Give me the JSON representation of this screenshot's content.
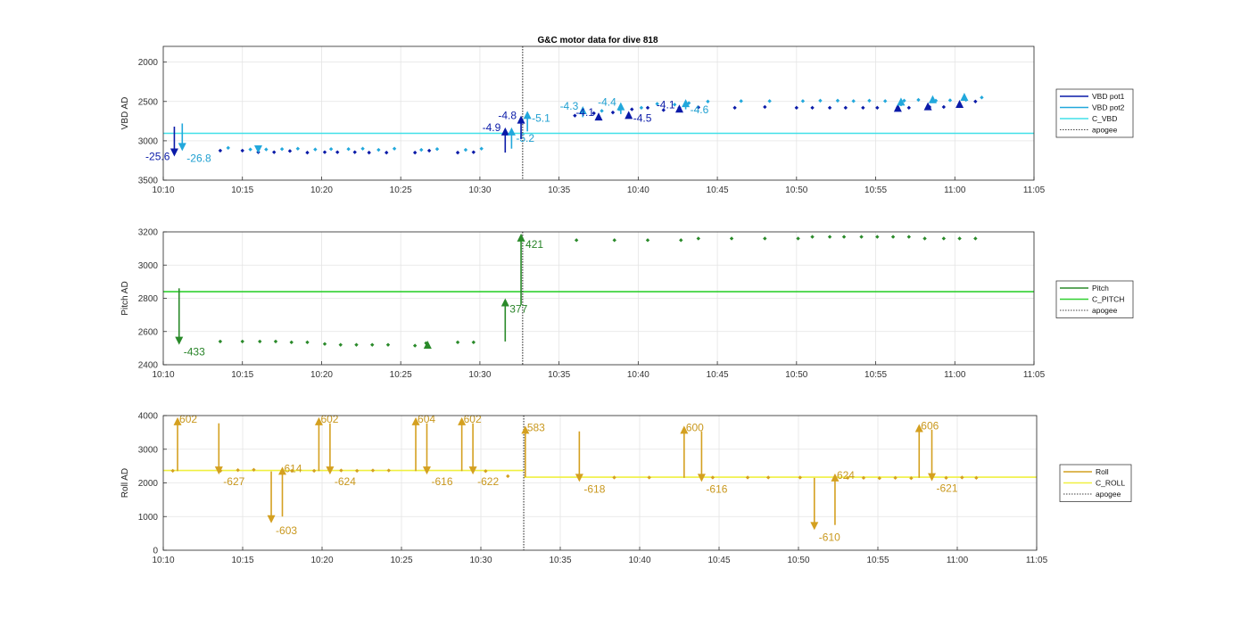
{
  "figure": {
    "title": "G&C motor data for dive 818"
  },
  "chart_data": [
    {
      "type": "scatter",
      "title": "G&C motor data for dive 818",
      "xlabel": "",
      "ylabel": "VBD AD",
      "x_ticks": [
        "10:10",
        "10:15",
        "10:20",
        "10:25",
        "10:30",
        "10:35",
        "10:40",
        "10:45",
        "10:50",
        "10:55",
        "11:00",
        "11:05"
      ],
      "y_ticks": [
        "2000",
        "2500",
        "3000",
        "3500"
      ],
      "xlim_min": [
        10,
        65
      ],
      "ylim": [
        1800,
        3500
      ],
      "y_reversed": true,
      "grid": true,
      "legend_position": "right",
      "legend": [
        {
          "label": "VBD pot1",
          "color": "#0a1aa8",
          "style": "solid"
        },
        {
          "label": "VBD pot2",
          "color": "#22a8dc",
          "style": "solid"
        },
        {
          "label": "C_VBD",
          "color": "#40e0e8",
          "style": "solid"
        },
        {
          "label": "apogee",
          "color": "#404040",
          "style": "dotted"
        }
      ],
      "hlines": [
        {
          "y": 2905,
          "color": "#40e0e8"
        }
      ],
      "apogee_min": 32.7,
      "series": [
        {
          "name": "VBD pot1",
          "color": "#0a1aa8",
          "x": [
            13.6,
            15,
            16,
            17,
            18,
            19.1,
            20.2,
            21,
            22.1,
            23,
            24.1,
            25.9,
            26.8,
            28.6,
            29.6,
            36,
            37.2,
            38.4,
            39.6,
            40.6,
            41.6,
            42.6,
            43.8,
            46.1,
            48,
            50,
            51,
            52.1,
            53.1,
            54.2,
            55.1,
            56.4,
            57.1,
            58.4,
            59.3,
            60.3,
            61.3
          ],
          "y": [
            3125,
            3125,
            3145,
            3145,
            3130,
            3150,
            3145,
            3145,
            3145,
            3150,
            3150,
            3150,
            3125,
            3150,
            3145,
            2680,
            2650,
            2640,
            2600,
            2580,
            2610,
            2580,
            2575,
            2580,
            2570,
            2580,
            2580,
            2580,
            2580,
            2580,
            2580,
            2575,
            2580,
            2570,
            2570,
            2560,
            2500
          ]
        },
        {
          "name": "VBD pot2",
          "color": "#22a8dc",
          "x": [
            14.1,
            15.5,
            16.5,
            17.5,
            18.5,
            19.6,
            20.6,
            21.7,
            22.6,
            23.6,
            24.6,
            26.3,
            27.3,
            29.1,
            30.1,
            36.5,
            37.7,
            38.8,
            40.2,
            41.2,
            42.3,
            43.2,
            44.4,
            46.5,
            48.3,
            50.4,
            51.5,
            52.6,
            53.6,
            54.6,
            55.6,
            56.8,
            57.7,
            58.8,
            59.7,
            60.7,
            61.7
          ],
          "y": [
            3090,
            3110,
            3110,
            3105,
            3100,
            3110,
            3105,
            3105,
            3100,
            3115,
            3100,
            3115,
            3105,
            3115,
            3100,
            2630,
            2620,
            2600,
            2580,
            2530,
            2540,
            2520,
            2500,
            2495,
            2495,
            2495,
            2490,
            2490,
            2495,
            2490,
            2495,
            2490,
            2480,
            2490,
            2485,
            2480,
            2450
          ]
        }
      ],
      "arrows": [
        {
          "x": 10.7,
          "y0": 2820,
          "y1": 3200,
          "color": "#0a1aa8",
          "label": "-25.6",
          "label_pos": "left"
        },
        {
          "x": 11.2,
          "y0": 2780,
          "y1": 3130,
          "color": "#22a8dc",
          "label": "-26.8",
          "label_pos": "right"
        },
        {
          "x": 16,
          "y0": 3120,
          "y1": 3160,
          "color": "#22a8dc",
          "label": "",
          "label_pos": "right"
        },
        {
          "x": 31.6,
          "y0": 3150,
          "y1": 2830,
          "color": "#0a1aa8",
          "label": "-4.9",
          "label_pos": "left"
        },
        {
          "x": 32.0,
          "y0": 3100,
          "y1": 2830,
          "color": "#22a8dc",
          "label": "-5.2",
          "label_pos": "belowright"
        },
        {
          "x": 32.6,
          "y0": 2980,
          "y1": 2680,
          "color": "#0a1aa8",
          "label": "-4.8",
          "label_pos": "left"
        },
        {
          "x": 33.0,
          "y0": 2880,
          "y1": 2620,
          "color": "#22a8dc",
          "label": "-5.1",
          "label_pos": "right"
        },
        {
          "x": 36.5,
          "y0": 2700,
          "y1": 2560,
          "color": "#22a8dc",
          "label": "-4.3",
          "label_pos": "left"
        },
        {
          "x": 37.5,
          "y0": 2690,
          "y1": 2640,
          "color": "#0a1aa8",
          "label": "-4.1",
          "label_pos": "left"
        },
        {
          "x": 38.9,
          "y0": 2660,
          "y1": 2510,
          "color": "#22a8dc",
          "label": "-4.4",
          "label_pos": "left"
        },
        {
          "x": 39.4,
          "y0": 2660,
          "y1": 2620,
          "color": "#0a1aa8",
          "label": "-4.5",
          "label_pos": "right"
        },
        {
          "x": 42.6,
          "y0": 2620,
          "y1": 2540,
          "color": "#0a1aa8",
          "label": "-4.1",
          "label_pos": "left"
        },
        {
          "x": 43.0,
          "y0": 2600,
          "y1": 2470,
          "color": "#22a8dc",
          "label": "-4.6",
          "label_pos": "belowright"
        },
        {
          "x": 56.4,
          "y0": 2600,
          "y1": 2530,
          "color": "#0a1aa8",
          "label": "",
          "label_pos": "right"
        },
        {
          "x": 56.6,
          "y0": 2560,
          "y1": 2450,
          "color": "#22a8dc",
          "label": "",
          "label_pos": "right"
        },
        {
          "x": 58.3,
          "y0": 2580,
          "y1": 2510,
          "color": "#0a1aa8",
          "label": "",
          "label_pos": "right"
        },
        {
          "x": 58.6,
          "y0": 2520,
          "y1": 2420,
          "color": "#22a8dc",
          "label": "",
          "label_pos": "right"
        },
        {
          "x": 60.3,
          "y0": 2560,
          "y1": 2480,
          "color": "#0a1aa8",
          "label": "",
          "label_pos": "right"
        },
        {
          "x": 60.6,
          "y0": 2480,
          "y1": 2390,
          "color": "#22a8dc",
          "label": "",
          "label_pos": "right"
        }
      ]
    },
    {
      "type": "scatter",
      "title": "",
      "xlabel": "",
      "ylabel": "Pitch AD",
      "x_ticks": [
        "10:10",
        "10:15",
        "10:20",
        "10:25",
        "10:30",
        "10:35",
        "10:40",
        "10:45",
        "10:50",
        "10:55",
        "11:00",
        "11:05"
      ],
      "y_ticks": [
        "2400",
        "2600",
        "2800",
        "3000",
        "3200"
      ],
      "xlim_min": [
        10,
        65
      ],
      "ylim": [
        2400,
        3200
      ],
      "y_reversed": false,
      "grid": true,
      "legend_position": "right",
      "legend": [
        {
          "label": "Pitch",
          "color": "#2a8a2a",
          "style": "solid"
        },
        {
          "label": "C_PITCH",
          "color": "#30d030",
          "style": "solid"
        },
        {
          "label": "apogee",
          "color": "#404040",
          "style": "dotted"
        }
      ],
      "hlines": [
        {
          "y": 2840,
          "color": "#30d030"
        }
      ],
      "apogee_min": 32.7,
      "series": [
        {
          "name": "Pitch",
          "color": "#2a8a2a",
          "x": [
            13.6,
            15,
            16.1,
            17.1,
            18.1,
            19.1,
            20.2,
            21.2,
            22.2,
            23.2,
            24.2,
            25.9,
            26.6,
            28.6,
            29.6,
            36.1,
            38.5,
            40.6,
            42.7,
            43.8,
            45.9,
            48,
            50.1,
            51,
            52.1,
            53,
            54.1,
            55.1,
            56.1,
            57.1,
            58.1,
            59.3,
            60.3,
            61.3
          ],
          "y": [
            2540,
            2540,
            2540,
            2540,
            2535,
            2535,
            2525,
            2520,
            2520,
            2520,
            2520,
            2515,
            2530,
            2535,
            2535,
            3150,
            3150,
            3150,
            3150,
            3160,
            3160,
            3160,
            3160,
            3170,
            3170,
            3170,
            3170,
            3170,
            3170,
            3170,
            3160,
            3160,
            3160,
            3160
          ]
        }
      ],
      "arrows": [
        {
          "x": 11.0,
          "y0": 2860,
          "y1": 2520,
          "color": "#2a8a2a",
          "label": "-433",
          "label_pos": "belowright"
        },
        {
          "x": 26.7,
          "y0": 2520,
          "y1": 2545,
          "color": "#2a8a2a",
          "label": "",
          "label_pos": "right"
        },
        {
          "x": 31.6,
          "y0": 2540,
          "y1": 2800,
          "color": "#2a8a2a",
          "label": "377",
          "label_pos": "belowright"
        },
        {
          "x": 32.6,
          "y0": 2760,
          "y1": 3190,
          "color": "#2a8a2a",
          "label": "421",
          "label_pos": "belowright"
        }
      ]
    },
    {
      "type": "scatter",
      "title": "",
      "xlabel": "",
      "ylabel": "Roll AD",
      "x_ticks": [
        "10:10",
        "10:15",
        "10:20",
        "10:25",
        "10:30",
        "10:35",
        "10:40",
        "10:45",
        "10:50",
        "10:55",
        "11:00",
        "11:05"
      ],
      "y_ticks": [
        "0",
        "1000",
        "2000",
        "3000",
        "4000"
      ],
      "xlim_min": [
        10,
        65
      ],
      "ylim": [
        0,
        4000
      ],
      "y_reversed": false,
      "grid": true,
      "legend_position": "right",
      "legend": [
        {
          "label": "Roll",
          "color": "#d4a020",
          "style": "solid"
        },
        {
          "label": "C_ROLL",
          "color": "#f0f040",
          "style": "solid"
        },
        {
          "label": "apogee",
          "color": "#404040",
          "style": "dotted"
        }
      ],
      "hlines": [
        {
          "y": 2370,
          "color": "#f0f040",
          "x0": 10,
          "x1": 32.7
        },
        {
          "y": 2170,
          "color": "#f0f040",
          "x0": 32.7,
          "x1": 65
        }
      ],
      "apogee_min": 32.7,
      "series": [
        {
          "name": "Roll",
          "color": "#d4a020",
          "x": [
            10.6,
            13.6,
            14.7,
            15.7,
            18.1,
            19.5,
            21.2,
            22.2,
            23.2,
            24.2,
            30.3,
            31.7,
            38.4,
            40.6,
            44.6,
            46.8,
            48.1,
            50.1,
            53.1,
            54.1,
            55.1,
            56.1,
            57.1,
            59.3,
            60.3,
            61.2
          ],
          "y": [
            2360,
            2360,
            2380,
            2390,
            2360,
            2360,
            2370,
            2360,
            2370,
            2370,
            2350,
            2200,
            2160,
            2160,
            2160,
            2160,
            2160,
            2160,
            2150,
            2150,
            2140,
            2150,
            2140,
            2150,
            2160,
            2150
          ]
        }
      ],
      "arrows": [
        {
          "x": 10.9,
          "y0": 2350,
          "y1": 3950,
          "color": "#d4a020",
          "label": "602",
          "label_pos": "topright"
        },
        {
          "x": 13.5,
          "y0": 3770,
          "y1": 2250,
          "color": "#d4a020",
          "label": "-627",
          "label_pos": "belowright"
        },
        {
          "x": 16.8,
          "y0": 2340,
          "y1": 800,
          "color": "#d4a020",
          "label": "-603",
          "label_pos": "belowright"
        },
        {
          "x": 17.5,
          "y0": 1000,
          "y1": 2480,
          "color": "#d4a020",
          "label": "614",
          "label_pos": "topright"
        },
        {
          "x": 19.8,
          "y0": 2350,
          "y1": 3950,
          "color": "#d4a020",
          "label": "602",
          "label_pos": "topright"
        },
        {
          "x": 20.5,
          "y0": 3770,
          "y1": 2250,
          "color": "#d4a020",
          "label": "-624",
          "label_pos": "belowright"
        },
        {
          "x": 25.9,
          "y0": 2350,
          "y1": 3950,
          "color": "#d4a020",
          "label": "604",
          "label_pos": "topright"
        },
        {
          "x": 26.6,
          "y0": 3770,
          "y1": 2250,
          "color": "#d4a020",
          "label": "-616",
          "label_pos": "belowright"
        },
        {
          "x": 28.8,
          "y0": 2350,
          "y1": 3950,
          "color": "#d4a020",
          "label": "602",
          "label_pos": "topright"
        },
        {
          "x": 29.5,
          "y0": 3770,
          "y1": 2250,
          "color": "#d4a020",
          "label": "-622",
          "label_pos": "belowright"
        },
        {
          "x": 32.8,
          "y0": 2170,
          "y1": 3700,
          "color": "#d4a020",
          "label": "583",
          "label_pos": "topright"
        },
        {
          "x": 36.2,
          "y0": 3530,
          "y1": 2030,
          "color": "#d4a020",
          "label": "-618",
          "label_pos": "belowright"
        },
        {
          "x": 42.8,
          "y0": 2150,
          "y1": 3700,
          "color": "#d4a020",
          "label": "600",
          "label_pos": "topright"
        },
        {
          "x": 43.9,
          "y0": 3530,
          "y1": 2030,
          "color": "#d4a020",
          "label": "-616",
          "label_pos": "belowright"
        },
        {
          "x": 51.0,
          "y0": 2150,
          "y1": 600,
          "color": "#d4a020",
          "label": "-610",
          "label_pos": "belowright"
        },
        {
          "x": 52.3,
          "y0": 750,
          "y1": 2280,
          "color": "#d4a020",
          "label": "624",
          "label_pos": "topright"
        },
        {
          "x": 57.6,
          "y0": 2150,
          "y1": 3750,
          "color": "#d4a020",
          "label": "606",
          "label_pos": "topright"
        },
        {
          "x": 58.4,
          "y0": 3580,
          "y1": 2050,
          "color": "#d4a020",
          "label": "-621",
          "label_pos": "belowright"
        }
      ]
    }
  ]
}
